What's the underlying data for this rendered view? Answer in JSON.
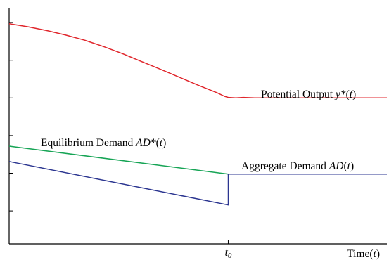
{
  "chart_data": {
    "type": "line",
    "xlabel_main": "Time(",
    "xlabel_var": "t",
    "xlabel_close": ")",
    "xlim": [
      0,
      1
    ],
    "ylim": [
      0,
      1
    ],
    "y_ticks": [
      0.14,
      0.3,
      0.46,
      0.62,
      0.78,
      0.94
    ],
    "marker": {
      "x": 0.58,
      "label": "t",
      "subscript": "0"
    },
    "grid": false,
    "legend": "inline labels",
    "series": [
      {
        "key": "potential",
        "color": "#e0262c",
        "label": {
          "text": "Potential Output ",
          "math": "y*",
          "open": "(",
          "var": "t",
          "close": ")"
        },
        "points": [
          [
            0,
            0.935
          ],
          [
            0.05,
            0.922
          ],
          [
            0.1,
            0.906
          ],
          [
            0.15,
            0.887
          ],
          [
            0.2,
            0.865
          ],
          [
            0.25,
            0.838
          ],
          [
            0.3,
            0.808
          ],
          [
            0.35,
            0.775
          ],
          [
            0.4,
            0.742
          ],
          [
            0.45,
            0.708
          ],
          [
            0.5,
            0.674
          ],
          [
            0.55,
            0.642
          ],
          [
            0.57,
            0.627
          ],
          [
            0.58,
            0.622
          ],
          [
            0.6,
            0.62
          ],
          [
            0.62,
            0.622
          ],
          [
            0.65,
            0.62
          ],
          [
            1,
            0.62
          ]
        ]
      },
      {
        "key": "equilibrium",
        "color": "#16a455",
        "label": {
          "text": "Equilibrium Demand ",
          "math": "AD*",
          "open": "(",
          "var": "t",
          "close": ")"
        },
        "points": [
          [
            0,
            0.415
          ],
          [
            0.58,
            0.296
          ],
          [
            1,
            0.296
          ]
        ]
      },
      {
        "key": "aggregate",
        "color": "#2b3590",
        "label": {
          "text": "Aggregate Demand ",
          "math": "AD",
          "open": "(",
          "var": "t",
          "close": ")"
        },
        "points": [
          [
            0,
            0.35
          ],
          [
            0.58,
            0.165
          ],
          [
            0.58,
            0.296
          ],
          [
            1,
            0.296
          ]
        ]
      }
    ]
  }
}
